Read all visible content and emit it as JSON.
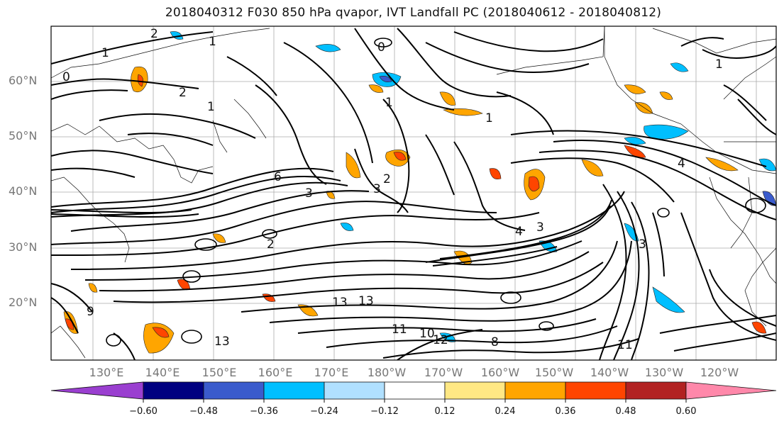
{
  "title": "2018040312 F030 850 hPa qvapor, IVT Landfall PC (2018040612 - 2018040812)",
  "lat_labels": [
    "60°N",
    "50°N",
    "40°N",
    "30°N",
    "20°N"
  ],
  "lon_labels": [
    "130°E",
    "140°E",
    "150°E",
    "160°E",
    "170°E",
    "180°W",
    "170°W",
    "160°W",
    "150°W",
    "140°W",
    "130°W",
    "120°W"
  ],
  "colorbar": {
    "tick_labels": [
      "−0.60",
      "−0.48",
      "−0.36",
      "−0.24",
      "−0.12",
      "0.12",
      "0.24",
      "0.36",
      "0.48",
      "0.60"
    ],
    "colors": [
      "#9a3fd0",
      "#000080",
      "#3a5bcc",
      "#00bfff",
      "#b0e0ff",
      "#ffffff",
      "#ffe884",
      "#ffa500",
      "#ff4500",
      "#b22222",
      "#ff88aa"
    ]
  },
  "contour_labels": [
    "2",
    "1",
    "0",
    "2",
    "1",
    "1",
    "0",
    "1",
    "1",
    "6",
    "3",
    "3",
    "2",
    "4",
    "3",
    "2",
    "3",
    "4",
    "9",
    "13",
    "13",
    "13",
    "11",
    "10",
    "12",
    "8",
    "11",
    "1"
  ],
  "colors": {
    "positive": "#ffa500",
    "positive_strong": "#ff4500",
    "negative": "#00bfff",
    "negative_strong": "#3a5bcc"
  }
}
